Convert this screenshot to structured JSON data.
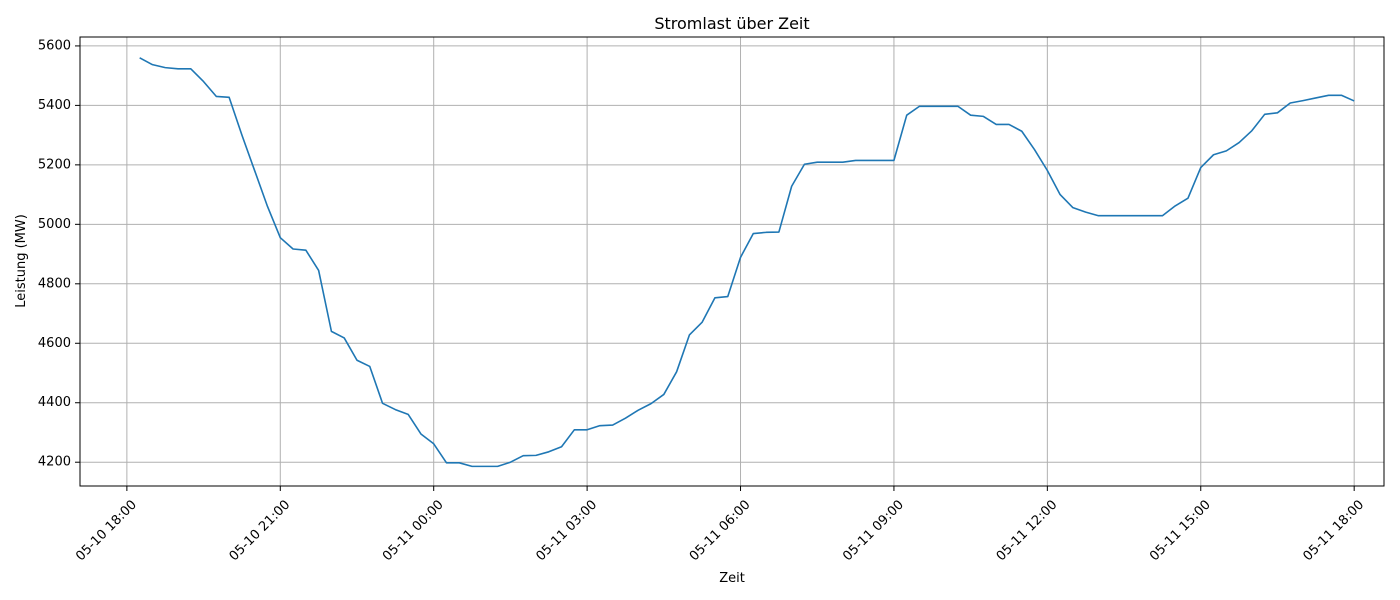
{
  "chart_data": {
    "type": "line",
    "title": "Stromlast über Zeit",
    "xlabel": "Zeit",
    "ylabel": "Leistung (MW)",
    "grid": true,
    "x_range": [
      "2024-05-10 17:05",
      "2024-05-11 18:35"
    ],
    "ylim": [
      4120,
      5630
    ],
    "x_ticks": [
      {
        "value": "2024-05-10 18:00",
        "label": "05-10 18:00"
      },
      {
        "value": "2024-05-10 21:00",
        "label": "05-10 21:00"
      },
      {
        "value": "2024-05-11 00:00",
        "label": "05-11 00:00"
      },
      {
        "value": "2024-05-11 03:00",
        "label": "05-11 03:00"
      },
      {
        "value": "2024-05-11 06:00",
        "label": "05-11 06:00"
      },
      {
        "value": "2024-05-11 09:00",
        "label": "05-11 09:00"
      },
      {
        "value": "2024-05-11 12:00",
        "label": "05-11 12:00"
      },
      {
        "value": "2024-05-11 15:00",
        "label": "05-11 15:00"
      },
      {
        "value": "2024-05-11 18:00",
        "label": "05-11 18:00"
      }
    ],
    "y_ticks": [
      4200,
      4400,
      4600,
      4800,
      5000,
      5200,
      5400,
      5600
    ],
    "series": [
      {
        "color": "#1f77b4",
        "x": [
          "2024-05-10 18:15",
          "2024-05-10 18:30",
          "2024-05-10 18:45",
          "2024-05-10 19:00",
          "2024-05-10 19:15",
          "2024-05-10 19:30",
          "2024-05-10 19:45",
          "2024-05-10 20:00",
          "2024-05-10 20:15",
          "2024-05-10 20:30",
          "2024-05-10 20:45",
          "2024-05-10 21:00",
          "2024-05-10 21:15",
          "2024-05-10 21:30",
          "2024-05-10 21:45",
          "2024-05-10 22:00",
          "2024-05-10 22:15",
          "2024-05-10 22:30",
          "2024-05-10 22:45",
          "2024-05-10 23:00",
          "2024-05-10 23:15",
          "2024-05-10 23:30",
          "2024-05-10 23:45",
          "2024-05-11 00:00",
          "2024-05-11 00:15",
          "2024-05-11 00:30",
          "2024-05-11 00:45",
          "2024-05-11 01:00",
          "2024-05-11 01:15",
          "2024-05-11 01:30",
          "2024-05-11 01:45",
          "2024-05-11 02:00",
          "2024-05-11 02:15",
          "2024-05-11 02:30",
          "2024-05-11 02:45",
          "2024-05-11 03:00",
          "2024-05-11 03:15",
          "2024-05-11 03:30",
          "2024-05-11 03:45",
          "2024-05-11 04:00",
          "2024-05-11 04:15",
          "2024-05-11 04:30",
          "2024-05-11 04:45",
          "2024-05-11 05:00",
          "2024-05-11 05:15",
          "2024-05-11 05:30",
          "2024-05-11 05:45",
          "2024-05-11 06:00",
          "2024-05-11 06:15",
          "2024-05-11 06:30",
          "2024-05-11 06:45",
          "2024-05-11 07:00",
          "2024-05-11 07:15",
          "2024-05-11 07:30",
          "2024-05-11 07:45",
          "2024-05-11 08:00",
          "2024-05-11 08:15",
          "2024-05-11 08:30",
          "2024-05-11 08:45",
          "2024-05-11 09:00",
          "2024-05-11 09:15",
          "2024-05-11 09:30",
          "2024-05-11 09:45",
          "2024-05-11 10:00",
          "2024-05-11 10:15",
          "2024-05-11 10:30",
          "2024-05-11 10:45",
          "2024-05-11 11:00",
          "2024-05-11 11:15",
          "2024-05-11 11:30",
          "2024-05-11 11:45",
          "2024-05-11 12:00",
          "2024-05-11 12:15",
          "2024-05-11 12:30",
          "2024-05-11 12:45",
          "2024-05-11 13:00",
          "2024-05-11 13:15",
          "2024-05-11 13:30",
          "2024-05-11 13:45",
          "2024-05-11 14:00",
          "2024-05-11 14:15",
          "2024-05-11 14:30",
          "2024-05-11 14:45",
          "2024-05-11 15:00",
          "2024-05-11 15:15",
          "2024-05-11 15:30",
          "2024-05-11 15:45",
          "2024-05-11 16:00",
          "2024-05-11 16:15",
          "2024-05-11 16:30",
          "2024-05-11 16:45",
          "2024-05-11 17:00",
          "2024-05-11 17:15",
          "2024-05-11 17:30",
          "2024-05-11 17:45",
          "2024-05-11 18:00"
        ],
        "y": [
          5560,
          5537,
          5527,
          5523,
          5523,
          5480,
          5430,
          5427,
          5300,
          5180,
          5060,
          4955,
          4917,
          4913,
          4845,
          4640,
          4618,
          4543,
          4522,
          4398,
          4377,
          4361,
          4295,
          4262,
          4198,
          4198,
          4186,
          4186,
          4186,
          4200,
          4222,
          4223,
          4235,
          4252,
          4309,
          4309,
          4323,
          4325,
          4348,
          4375,
          4397,
          4428,
          4504,
          4628,
          4671,
          4753,
          4757,
          4889,
          4969,
          4973,
          4974,
          5128,
          5202,
          5209,
          5209,
          5209,
          5215,
          5215,
          5215,
          5215,
          5367,
          5397,
          5397,
          5397,
          5397,
          5367,
          5363,
          5336,
          5336,
          5313,
          5251,
          5181,
          5100,
          5056,
          5041,
          5029,
          5029,
          5029,
          5029,
          5029,
          5029,
          5062,
          5088,
          5191,
          5234,
          5247,
          5275,
          5315,
          5370,
          5375,
          5408,
          5416,
          5425,
          5434,
          5434,
          5415
        ]
      }
    ]
  }
}
